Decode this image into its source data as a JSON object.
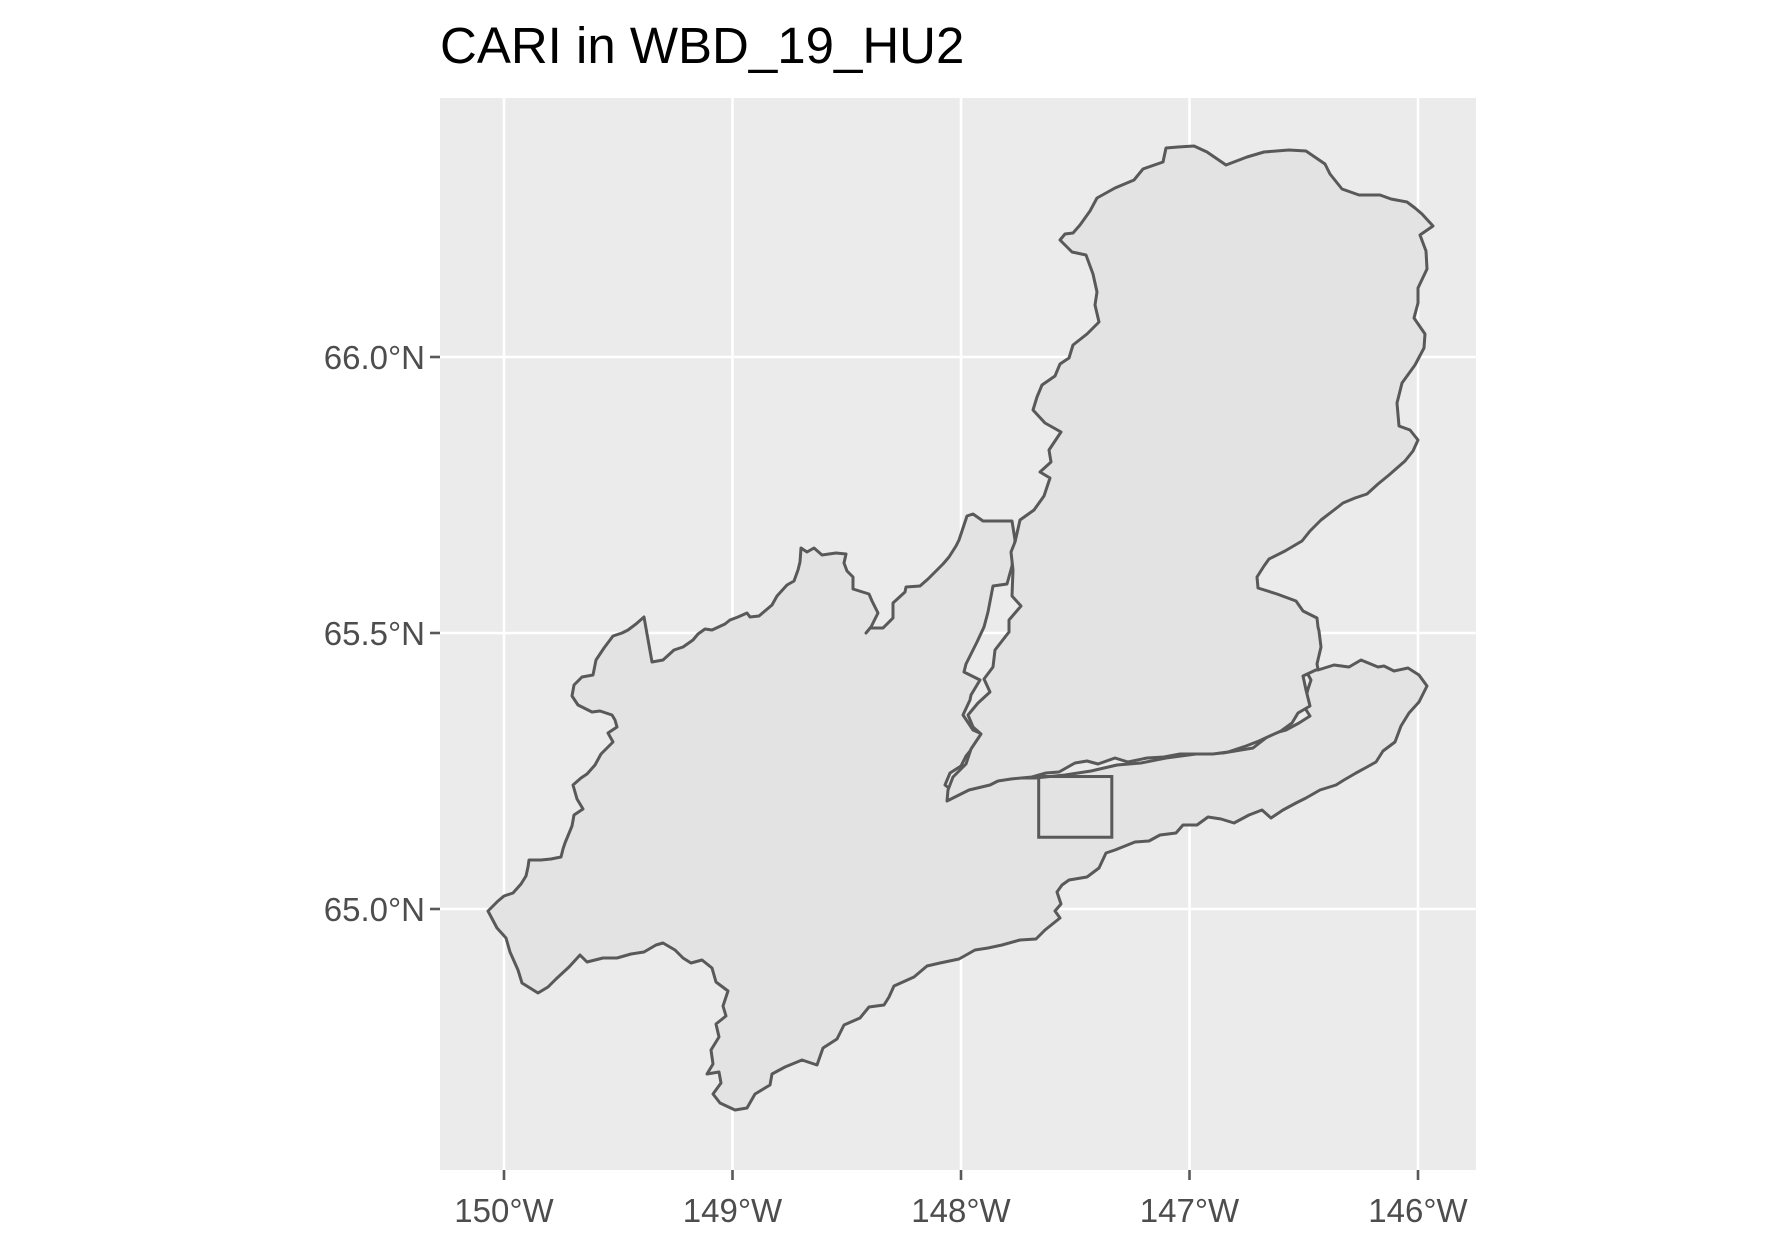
{
  "title": "CARI in WBD_19_HU2",
  "colors": {
    "panel_background": "#ebebeb",
    "grid": "#ffffff",
    "region_fill": "#e3e3e3",
    "outline": "#595959",
    "tick_label": "#4d4d4d",
    "title": "#000000"
  },
  "axes": {
    "x_ticks": [
      {
        "value": -150,
        "label": "150°W"
      },
      {
        "value": -149,
        "label": "149°W"
      },
      {
        "value": -148,
        "label": "148°W"
      },
      {
        "value": -147,
        "label": "147°W"
      },
      {
        "value": -146,
        "label": "146°W"
      }
    ],
    "y_ticks": [
      {
        "value": 65.0,
        "label": "65.0°N"
      },
      {
        "value": 65.5,
        "label": "65.5°N"
      },
      {
        "value": 66.0,
        "label": "66.0°N"
      }
    ],
    "grid": true
  },
  "map_data": {
    "projection": "longitude-latitude",
    "site_marker": {
      "shape": "rectangle",
      "lon_range": [
        -147.66,
        -147.34
      ],
      "lat_range": [
        65.13,
        65.24
      ]
    }
  }
}
